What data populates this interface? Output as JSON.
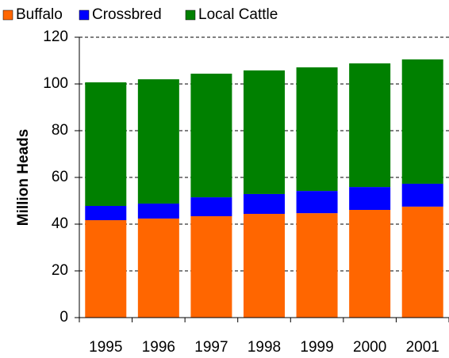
{
  "chart_data": {
    "type": "stacked_bar",
    "y_label": "Million Heads",
    "categories": [
      "1995",
      "1996",
      "1997",
      "1998",
      "1999",
      "2000",
      "2001"
    ],
    "series": [
      {
        "name": "Buffalo",
        "color": "#ff6600",
        "values": [
          41.7,
          42.4,
          43.4,
          44.4,
          44.7,
          46.1,
          47.5
        ]
      },
      {
        "name": "Crossbred",
        "color": "#0000ff",
        "values": [
          6.1,
          6.4,
          8.1,
          8.5,
          9.5,
          9.8,
          9.8
        ]
      },
      {
        "name": "Local Cattle",
        "color": "#008000",
        "values": [
          52.9,
          53.2,
          52.9,
          52.9,
          52.9,
          52.9,
          53.2
        ]
      }
    ],
    "ylim": [
      0,
      120
    ],
    "yticks": [
      0,
      20,
      40,
      60,
      80,
      100,
      120
    ],
    "grid": true,
    "legend": "top"
  }
}
